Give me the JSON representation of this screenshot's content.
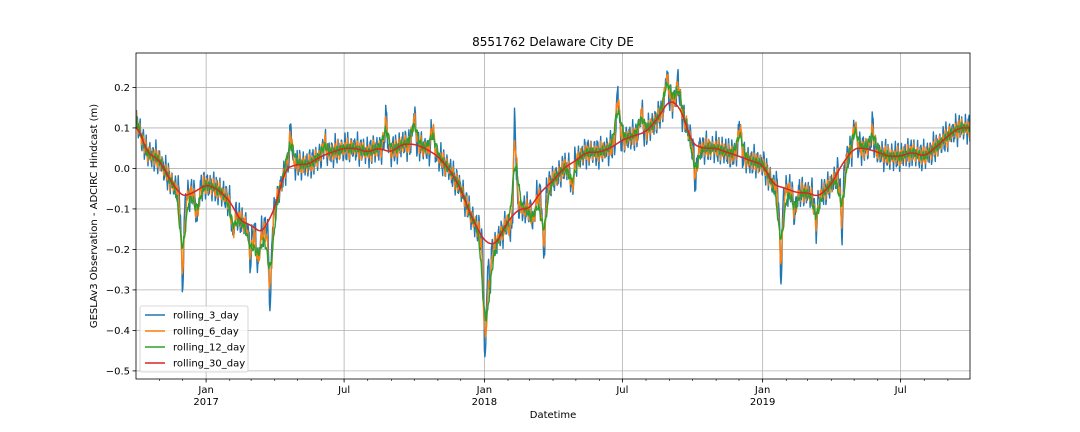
{
  "chart_data": {
    "type": "line",
    "title": "8551762 Delaware City DE",
    "xlabel": "Datetime",
    "ylabel": "GESLAv3 Observation - ADCIRC Hindcast (m)",
    "xlim": [
      "2016-10-01",
      "2019-09-30"
    ],
    "ylim": [
      -0.52,
      0.285
    ],
    "grid": true,
    "legend_position": "lower-left",
    "y_ticks": [
      0.2,
      0.1,
      0.0,
      -0.1,
      -0.2,
      -0.3,
      -0.4,
      -0.5
    ],
    "y_tick_labels": [
      "0.2",
      "0.1",
      "0.0",
      "−0.1",
      "−0.2",
      "−0.3",
      "−0.4",
      "−0.5"
    ],
    "x_major_ticks": [
      {
        "date": "2017-01-01",
        "label": "Jan",
        "year": "2017"
      },
      {
        "date": "2017-07-01",
        "label": "Jul",
        "year": ""
      },
      {
        "date": "2018-01-01",
        "label": "Jan",
        "year": "2018"
      },
      {
        "date": "2018-07-01",
        "label": "Jul",
        "year": ""
      },
      {
        "date": "2019-01-01",
        "label": "Jan",
        "year": "2019"
      },
      {
        "date": "2019-07-01",
        "label": "Jul",
        "year": ""
      }
    ],
    "series": [
      {
        "name": "rolling_3_day",
        "color": "#1f77b4",
        "noise_amplitude": 0.045
      },
      {
        "name": "rolling_6_day",
        "color": "#ff7f0e",
        "noise_amplitude": 0.028
      },
      {
        "name": "rolling_12_day",
        "color": "#2ca02c",
        "noise_amplitude": 0.014
      },
      {
        "name": "rolling_30_day",
        "color": "#d62728",
        "noise_amplitude": 0.0
      }
    ],
    "rolling_30_day_profile": [
      [
        "2016-10-01",
        0.12
      ],
      [
        "2016-10-15",
        0.04
      ],
      [
        "2016-11-01",
        0.02
      ],
      [
        "2016-11-15",
        -0.03
      ],
      [
        "2016-12-01",
        -0.07
      ],
      [
        "2016-12-15",
        -0.06
      ],
      [
        "2017-01-01",
        -0.04
      ],
      [
        "2017-01-15",
        -0.05
      ],
      [
        "2017-02-01",
        -0.08
      ],
      [
        "2017-02-15",
        -0.13
      ],
      [
        "2017-03-01",
        -0.14
      ],
      [
        "2017-03-15",
        -0.16
      ],
      [
        "2017-04-01",
        -0.1
      ],
      [
        "2017-04-15",
        0.0
      ],
      [
        "2017-05-01",
        0.01
      ],
      [
        "2017-05-15",
        0.01
      ],
      [
        "2017-06-01",
        0.03
      ],
      [
        "2017-06-15",
        0.04
      ],
      [
        "2017-07-01",
        0.05
      ],
      [
        "2017-07-15",
        0.05
      ],
      [
        "2017-08-01",
        0.04
      ],
      [
        "2017-08-15",
        0.05
      ],
      [
        "2017-09-01",
        0.04
      ],
      [
        "2017-09-15",
        0.06
      ],
      [
        "2017-10-01",
        0.06
      ],
      [
        "2017-10-15",
        0.05
      ],
      [
        "2017-11-01",
        0.03
      ],
      [
        "2017-11-15",
        0.0
      ],
      [
        "2017-12-01",
        -0.05
      ],
      [
        "2017-12-15",
        -0.12
      ],
      [
        "2018-01-01",
        -0.18
      ],
      [
        "2018-01-15",
        -0.19
      ],
      [
        "2018-02-01",
        -0.13
      ],
      [
        "2018-02-15",
        -0.1
      ],
      [
        "2018-03-01",
        -0.1
      ],
      [
        "2018-03-15",
        -0.06
      ],
      [
        "2018-04-01",
        -0.03
      ],
      [
        "2018-04-15",
        0.0
      ],
      [
        "2018-05-01",
        0.02
      ],
      [
        "2018-05-15",
        0.04
      ],
      [
        "2018-06-01",
        0.04
      ],
      [
        "2018-06-15",
        0.05
      ],
      [
        "2018-07-01",
        0.07
      ],
      [
        "2018-07-15",
        0.08
      ],
      [
        "2018-08-01",
        0.09
      ],
      [
        "2018-08-15",
        0.12
      ],
      [
        "2018-09-01",
        0.17
      ],
      [
        "2018-09-15",
        0.15
      ],
      [
        "2018-10-01",
        0.06
      ],
      [
        "2018-10-15",
        0.05
      ],
      [
        "2018-11-01",
        0.05
      ],
      [
        "2018-11-15",
        0.04
      ],
      [
        "2018-12-01",
        0.03
      ],
      [
        "2018-12-15",
        0.02
      ],
      [
        "2019-01-01",
        0.01
      ],
      [
        "2019-01-15",
        -0.04
      ],
      [
        "2019-02-01",
        -0.05
      ],
      [
        "2019-02-15",
        -0.06
      ],
      [
        "2019-03-01",
        -0.06
      ],
      [
        "2019-03-15",
        -0.07
      ],
      [
        "2019-04-01",
        -0.04
      ],
      [
        "2019-04-15",
        0.01
      ],
      [
        "2019-05-01",
        0.05
      ],
      [
        "2019-05-15",
        0.05
      ],
      [
        "2019-06-01",
        0.04
      ],
      [
        "2019-06-15",
        0.03
      ],
      [
        "2019-07-01",
        0.03
      ],
      [
        "2019-07-15",
        0.04
      ],
      [
        "2019-08-01",
        0.03
      ],
      [
        "2019-08-15",
        0.05
      ],
      [
        "2019-09-01",
        0.08
      ],
      [
        "2019-09-15",
        0.1
      ],
      [
        "2019-09-30",
        0.1
      ]
    ],
    "events": [
      [
        "2016-12-01",
        -0.29
      ],
      [
        "2016-12-20",
        -0.13
      ],
      [
        "2017-02-05",
        -0.17
      ],
      [
        "2017-02-28",
        -0.23
      ],
      [
        "2017-03-10",
        -0.25
      ],
      [
        "2017-03-26",
        -0.34
      ],
      [
        "2017-04-22",
        0.1
      ],
      [
        "2017-06-05",
        0.07
      ],
      [
        "2017-08-25",
        0.13
      ],
      [
        "2017-10-01",
        0.14
      ],
      [
        "2017-10-25",
        0.11
      ],
      [
        "2018-01-02",
        -0.48
      ],
      [
        "2018-01-08",
        -0.29
      ],
      [
        "2018-02-05",
        -0.17
      ],
      [
        "2018-02-10",
        0.12
      ],
      [
        "2018-03-06",
        -0.14
      ],
      [
        "2018-03-20",
        -0.22
      ],
      [
        "2018-04-26",
        -0.06
      ],
      [
        "2018-06-25",
        0.2
      ],
      [
        "2018-07-26",
        0.15
      ],
      [
        "2018-08-28",
        0.24
      ],
      [
        "2018-09-12",
        0.22
      ],
      [
        "2018-10-05",
        -0.04
      ],
      [
        "2018-12-02",
        0.12
      ],
      [
        "2019-01-25",
        -0.27
      ],
      [
        "2019-02-12",
        -0.12
      ],
      [
        "2019-03-12",
        -0.15
      ],
      [
        "2019-04-15",
        -0.16
      ],
      [
        "2019-05-02",
        0.12
      ],
      [
        "2019-05-25",
        0.11
      ]
    ]
  }
}
